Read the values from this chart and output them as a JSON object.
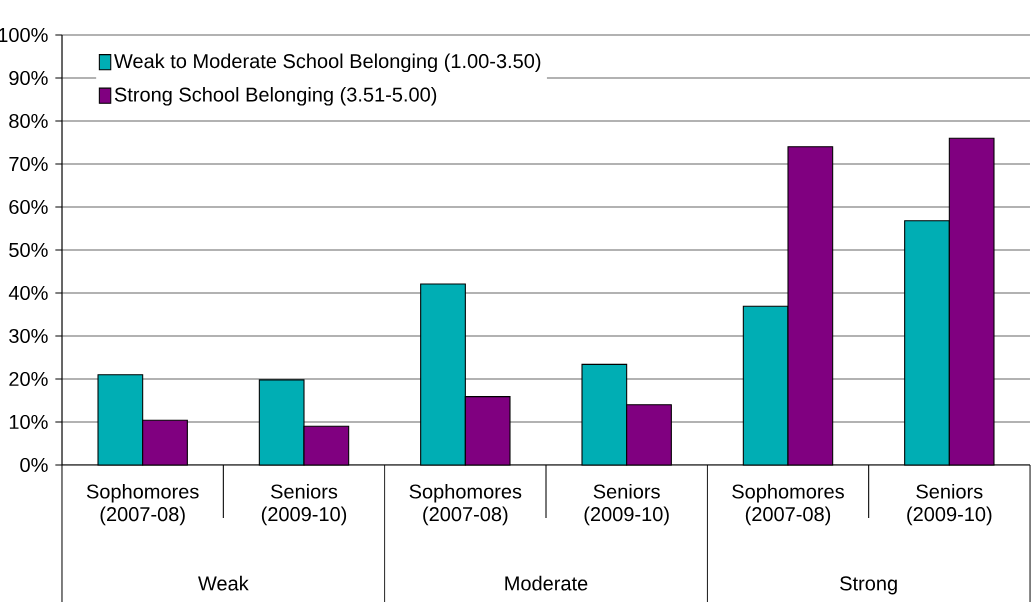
{
  "chart_data": {
    "type": "bar",
    "categories": [
      "Sophomores (2007-08)",
      "Seniors (2009-10)",
      "Sophomores (2007-08)",
      "Seniors (2009-10)",
      "Sophomores (2007-08)",
      "Seniors (2009-10)"
    ],
    "series": [
      {
        "name": "Weak to Moderate School Belonging (1.00-3.50)",
        "color": "#00aeb4",
        "values": [
          21.0,
          19.8,
          42.1,
          23.4,
          36.9,
          56.8
        ]
      },
      {
        "name": "Strong School Belonging (3.51-5.00)",
        "color": "#800080",
        "values": [
          10.4,
          9.0,
          15.9,
          14.0,
          74.0,
          76.0
        ]
      }
    ],
    "annotations": [
      "Weak",
      "Moderate",
      "Strong"
    ],
    "ylim": [
      0,
      100
    ],
    "yticks": [
      {
        "value": 0,
        "label": "0%"
      },
      {
        "value": 10,
        "label": "10%"
      },
      {
        "value": 20,
        "label": "20%"
      },
      {
        "value": 30,
        "label": "30%"
      },
      {
        "value": 40,
        "label": "40%"
      },
      {
        "value": 50,
        "label": "50%"
      },
      {
        "value": 60,
        "label": "60%"
      },
      {
        "value": 70,
        "label": "70%"
      },
      {
        "value": 80,
        "label": "80%"
      },
      {
        "value": 90,
        "label": "90%"
      },
      {
        "value": 100,
        "label": "100%"
      }
    ],
    "grid": "y",
    "legend": "top left"
  }
}
